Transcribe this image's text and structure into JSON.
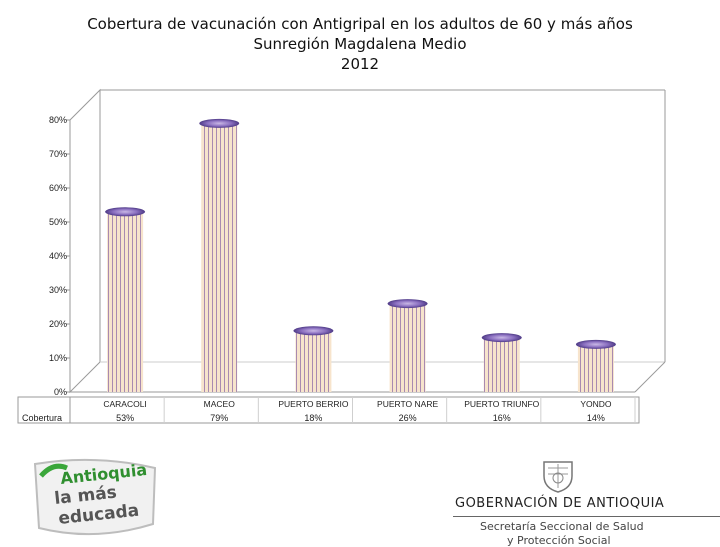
{
  "chart_data": {
    "type": "bar",
    "title_lines": [
      "Cobertura de vacunación con Antigripal en los adultos de 60 y más años",
      "Sunregión Magdalena Medio",
      "2012"
    ],
    "categories": [
      "CARACOLI",
      "MACEO",
      "PUERTO BERRIO",
      "PUERTO NARE",
      "PUERTO TRIUNFO",
      "YONDO"
    ],
    "series": [
      {
        "name": "Cobertura",
        "values": [
          53,
          79,
          18,
          26,
          16,
          14
        ],
        "labels": [
          "53%",
          "79%",
          "18%",
          "26%",
          "16%",
          "14%"
        ]
      }
    ],
    "yticks": [
      "0%",
      "10%",
      "20%",
      "30%",
      "40%",
      "50%",
      "60%",
      "70%",
      "80%"
    ],
    "ylim": [
      0,
      80
    ],
    "grid": false,
    "legend": "table-below",
    "colors": {
      "bar_light": "#f7e4cc",
      "bar_stripe": "#a98ab0",
      "cap": "#6b4fa0",
      "cap_light": "#c9b8e6"
    }
  },
  "footer": {
    "logo_left": {
      "line1": "Antioquia",
      "line2": "la más",
      "line3": "educada"
    },
    "logo_right": {
      "name": "GOBERNACIÓN DE ANTIOQUIA",
      "sub1": "Secretaría Seccional de Salud",
      "sub2": "y Protección Social"
    }
  }
}
